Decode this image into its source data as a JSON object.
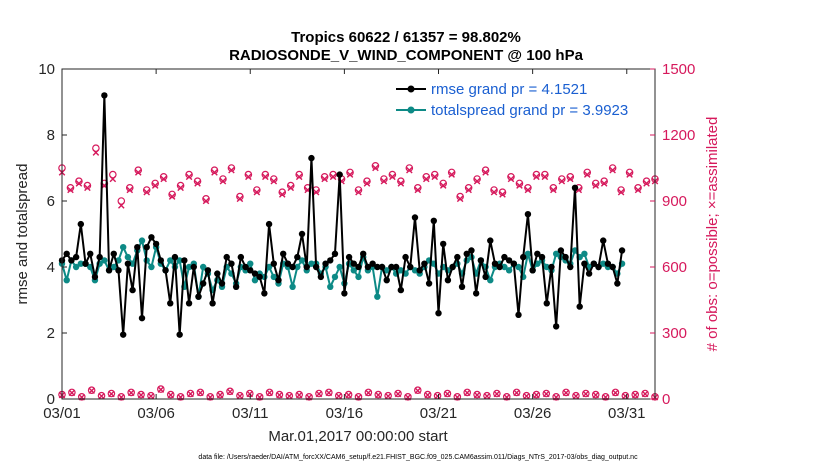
{
  "chart_data": {
    "type": "line",
    "title_line1": "Tropics 60622 / 61357 = 98.802%",
    "title_line2": "RADIOSONDE_V_WIND_COMPONENT @ 100 hPa",
    "ylabel": "rmse and totalspread",
    "ylabel_right": "# of obs: o=possible; ×=assimilated",
    "xlabel": "Mar.01,2017 00:00:00 start",
    "footer": "data file: /Users/raeder/DAI/ATM_forcXX/CAM6_setup/f.e21.FHIST_BGC.f09_025.CAM6assim.011/Diags_NTrS_2017-03/obs_diag_output.nc",
    "ylim": [
      0,
      10
    ],
    "ylim_right": [
      0,
      1500
    ],
    "xlim": [
      0,
      31.5
    ],
    "yticks": [
      "0",
      "2",
      "4",
      "6",
      "8",
      "10"
    ],
    "yticks_right": [
      "0",
      "300",
      "600",
      "900",
      "1200",
      "1500"
    ],
    "xticks": [
      {
        "x": 0,
        "label": "03/01"
      },
      {
        "x": 5,
        "label": "03/06"
      },
      {
        "x": 10,
        "label": "03/11"
      },
      {
        "x": 15,
        "label": "03/16"
      },
      {
        "x": 20,
        "label": "03/21"
      },
      {
        "x": 25,
        "label": "03/26"
      },
      {
        "x": 30,
        "label": "03/31"
      }
    ],
    "series": [
      {
        "name": "rmse grand pr = 4.1521",
        "color": "#000000",
        "values": [
          4.2,
          4.4,
          4.2,
          4.3,
          5.3,
          4.1,
          4.4,
          3.7,
          4.3,
          9.2,
          3.9,
          4.4,
          3.9,
          1.95,
          4.1,
          3.3,
          4.6,
          2.45,
          4.6,
          4.9,
          4.7,
          4.2,
          3.9,
          2.9,
          4.3,
          1.95,
          4.2,
          2.9,
          4.0,
          3.1,
          3.5,
          3.9,
          2.9,
          3.8,
          3.5,
          4.3,
          4.1,
          3.4,
          4.3,
          4.0,
          3.9,
          3.8,
          3.7,
          3.2,
          5.3,
          4.1,
          3.6,
          4.4,
          4.1,
          4.0,
          4.3,
          5.0,
          4.0,
          7.3,
          4.0,
          3.7,
          4.1,
          4.2,
          4.4,
          6.8,
          3.2,
          4.3,
          4.1,
          4.0,
          4.4,
          4.0,
          4.1,
          4.0,
          4.0,
          3.6,
          4.0,
          4.0,
          3.3,
          4.3,
          4.0,
          5.5,
          3.9,
          4.1,
          3.5,
          5.4,
          2.6,
          4.7,
          3.6,
          4.0,
          4.3,
          3.4,
          4.4,
          4.5,
          3.2,
          4.2,
          3.7,
          4.8,
          4.1,
          4.0,
          4.3,
          4.2,
          4.1,
          2.55,
          4.3,
          5.6,
          3.9,
          4.4,
          4.3,
          2.9,
          4.0,
          2.2,
          4.5,
          4.3,
          4.0,
          6.4,
          2.8,
          4.1,
          3.8,
          4.1,
          4.0,
          4.8,
          4.1,
          4.0,
          3.5,
          4.5
        ],
        "x_start": 0,
        "x_step": 0.25
      },
      {
        "name": "totalspread grand pr = 3.9923",
        "color": "#0d8a86",
        "values": [
          4.1,
          3.6,
          4.2,
          4.0,
          4.1,
          4.1,
          4.0,
          3.6,
          4.1,
          4.2,
          3.9,
          4.0,
          4.2,
          4.6,
          4.3,
          4.1,
          4.5,
          4.8,
          4.2,
          4.0,
          4.6,
          4.1,
          3.9,
          4.2,
          4.0,
          4.2,
          3.4,
          4.0,
          4.1,
          3.1,
          4.0,
          3.8,
          3.3,
          3.6,
          3.4,
          4.0,
          3.8,
          3.5,
          4.0,
          3.9,
          4.1,
          3.6,
          3.8,
          3.7,
          4.0,
          3.7,
          3.5,
          4.1,
          4.0,
          3.4,
          4.0,
          4.2,
          3.9,
          4.1,
          4.1,
          3.8,
          4.0,
          3.4,
          3.7,
          4.0,
          3.5,
          4.1,
          3.9,
          3.7,
          4.3,
          3.9,
          4.0,
          3.1,
          4.0,
          3.9,
          4.0,
          3.8,
          3.9,
          3.8,
          4.0,
          3.9,
          3.8,
          4.0,
          4.2,
          4.1,
          3.8,
          4.0,
          3.9,
          4.0,
          4.1,
          3.8,
          4.2,
          4.3,
          3.8,
          4.2,
          4.0,
          3.6,
          4.0,
          4.1,
          4.0,
          3.9,
          4.1,
          4.0,
          3.7,
          4.4,
          3.9,
          4.1,
          4.2,
          4.0,
          3.9,
          4.4,
          4.3,
          4.2,
          4.1,
          4.5,
          4.3,
          4.4,
          4.0,
          4.1,
          4.0,
          4.1,
          4.0,
          4.0,
          3.8,
          4.1
        ],
        "x_start": 0,
        "x_step": 0.25
      }
    ],
    "obs_possible_top": [
      1050,
      960,
      990,
      970,
      1140,
      980,
      1020,
      900,
      960,
      1040,
      950,
      980,
      1010,
      930,
      970,
      1020,
      990,
      910,
      1040,
      1000,
      1050,
      920,
      1020,
      950,
      1020,
      1000,
      940,
      970,
      1020,
      960,
      950,
      1010,
      1020,
      1000,
      1030,
      950,
      990,
      1060,
      1000,
      1020,
      990,
      1050,
      960,
      1010,
      1020,
      980,
      1030,
      920,
      960,
      1000,
      1040,
      950,
      940,
      1010,
      980,
      960,
      1020,
      1020,
      960,
      1000,
      1010,
      960,
      1030,
      980,
      990,
      1050,
      950,
      1030,
      960,
      990,
      1000
    ],
    "obs_assimilated_top": [
      1030,
      950,
      980,
      960,
      1120,
      970,
      1000,
      880,
      950,
      1030,
      940,
      970,
      1000,
      920,
      960,
      1010,
      980,
      900,
      1030,
      990,
      1040,
      910,
      1010,
      940,
      1010,
      990,
      930,
      960,
      1010,
      950,
      940,
      1000,
      1010,
      990,
      1020,
      940,
      980,
      1050,
      990,
      1010,
      980,
      1040,
      950,
      1000,
      1010,
      970,
      1020,
      910,
      950,
      990,
      1030,
      940,
      930,
      1000,
      970,
      950,
      1010,
      1010,
      950,
      990,
      1000,
      950,
      1020,
      970,
      980,
      1040,
      940,
      1020,
      950,
      980,
      990
    ],
    "obs_possible_bottom": [
      20,
      30,
      10,
      40,
      15,
      25,
      10,
      30,
      20,
      15,
      45,
      20,
      10,
      25,
      30,
      10,
      20,
      35,
      15,
      25,
      10,
      30,
      20,
      15,
      20,
      10,
      25,
      30,
      15,
      20,
      10,
      30,
      20,
      15,
      25,
      10,
      40,
      20,
      15,
      25,
      10,
      30,
      20,
      15,
      25,
      10,
      30,
      15,
      20,
      25,
      10,
      30,
      15,
      25,
      20,
      10,
      30,
      15,
      20,
      25,
      10
    ],
    "obs_assimilated_bottom": [
      18,
      28,
      8,
      38,
      13,
      23,
      8,
      28,
      18,
      13,
      43,
      18,
      8,
      23,
      28,
      8,
      18,
      33,
      13,
      23,
      8,
      28,
      18,
      13,
      18,
      8,
      23,
      28,
      13,
      18,
      8,
      28,
      18,
      13,
      23,
      8,
      38,
      18,
      13,
      23,
      8,
      28,
      18,
      13,
      23,
      8,
      28,
      13,
      18,
      23,
      8,
      28,
      13,
      23,
      18,
      8,
      28,
      13,
      18,
      23,
      8
    ]
  }
}
